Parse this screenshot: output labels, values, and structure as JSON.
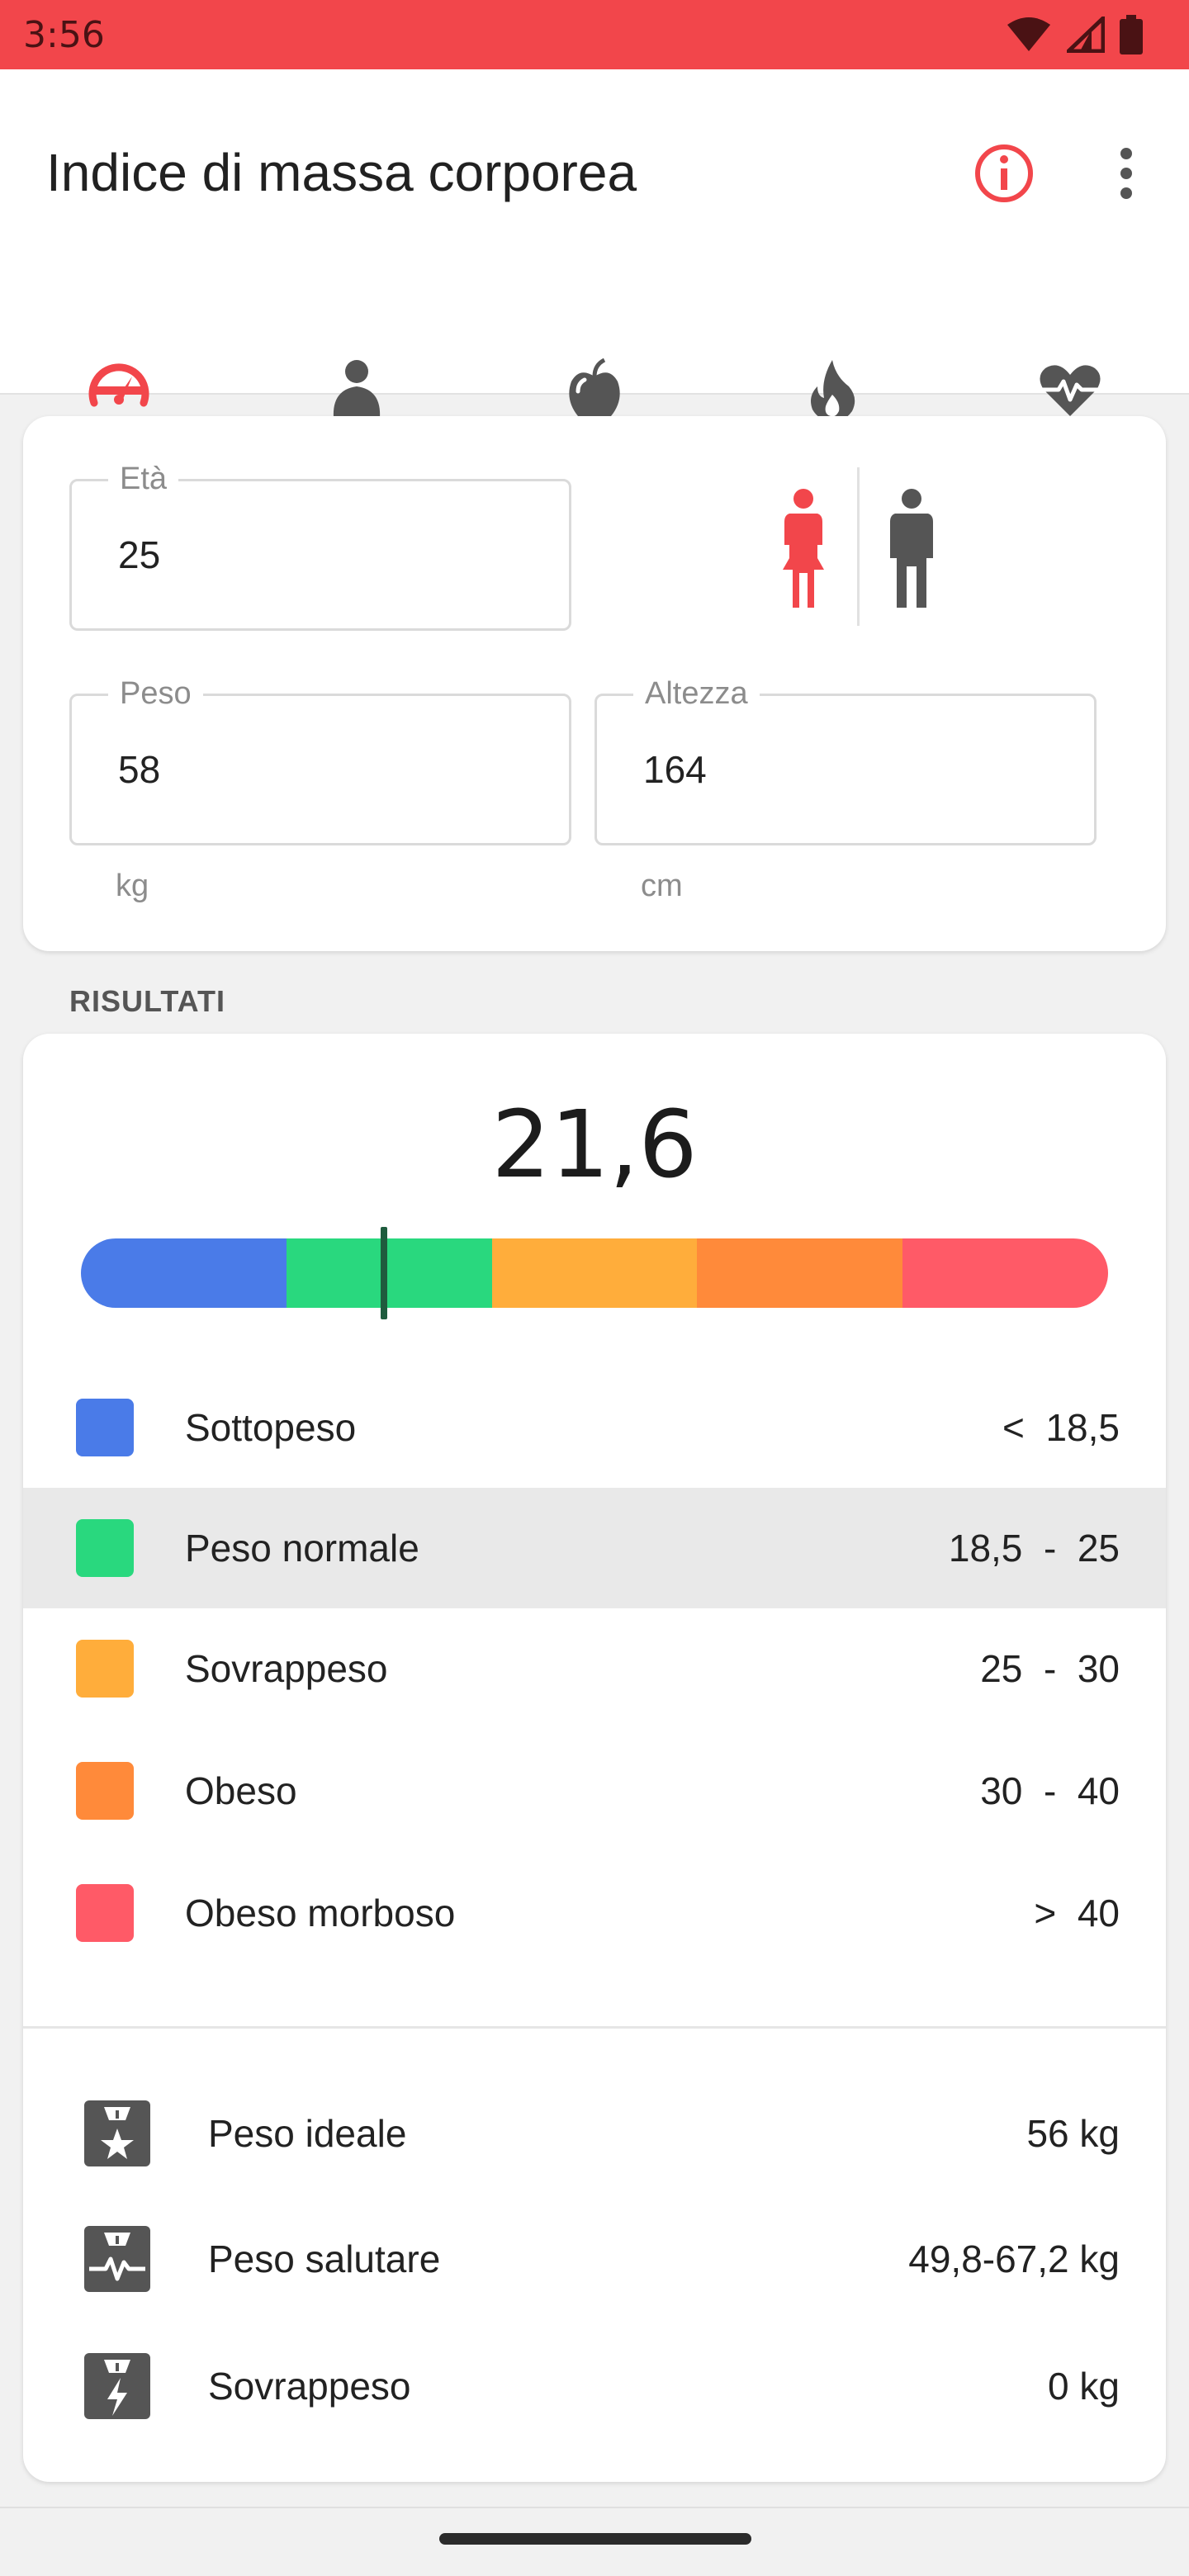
{
  "status_bar": {
    "time": "3:56"
  },
  "app": {
    "title": "Indice di massa corporea"
  },
  "colors": {
    "accent": "#f2464b",
    "underweight": "#4a7be8",
    "normal": "#29d87e",
    "overweight": "#ffad3b",
    "obese": "#ff8a3a",
    "morbid": "#ff5a67"
  },
  "tabs": [
    {
      "icon": "speedometer-icon",
      "selected": true
    },
    {
      "icon": "person-body-icon",
      "selected": false
    },
    {
      "icon": "apple-icon",
      "selected": false
    },
    {
      "icon": "flame-icon",
      "selected": false
    },
    {
      "icon": "heart-pulse-icon",
      "selected": false
    }
  ],
  "inputs": {
    "age": {
      "label": "Età",
      "value": "25"
    },
    "weight": {
      "label": "Peso",
      "value": "58",
      "unit": "kg"
    },
    "height": {
      "label": "Altezza",
      "value": "164",
      "unit": "cm"
    },
    "gender": {
      "selected": "female"
    }
  },
  "results": {
    "section_label": "RISULTATI",
    "bmi": "21,6",
    "bmi_number": 21.6,
    "categories": [
      {
        "name": "Sottopeso",
        "range": "<  18,5",
        "color": "#4a7be8",
        "active": false
      },
      {
        "name": "Peso normale",
        "range": "18,5  -  25",
        "color": "#29d87e",
        "active": true
      },
      {
        "name": "Sovrappeso",
        "range": "25  -  30",
        "color": "#ffad3b",
        "active": false
      },
      {
        "name": "Obeso",
        "range": "30  -  40",
        "color": "#ff8a3a",
        "active": false
      },
      {
        "name": "Obeso morboso",
        "range": ">  40",
        "color": "#ff5a67",
        "active": false
      }
    ],
    "weights": [
      {
        "icon": "scale-star-icon",
        "name": "Peso ideale",
        "value": "56 kg"
      },
      {
        "icon": "scale-pulse-icon",
        "name": "Peso salutare",
        "value": "49,8-67,2 kg"
      },
      {
        "icon": "scale-bolt-icon",
        "name": "Sovrappeso",
        "value": "0 kg"
      }
    ]
  }
}
